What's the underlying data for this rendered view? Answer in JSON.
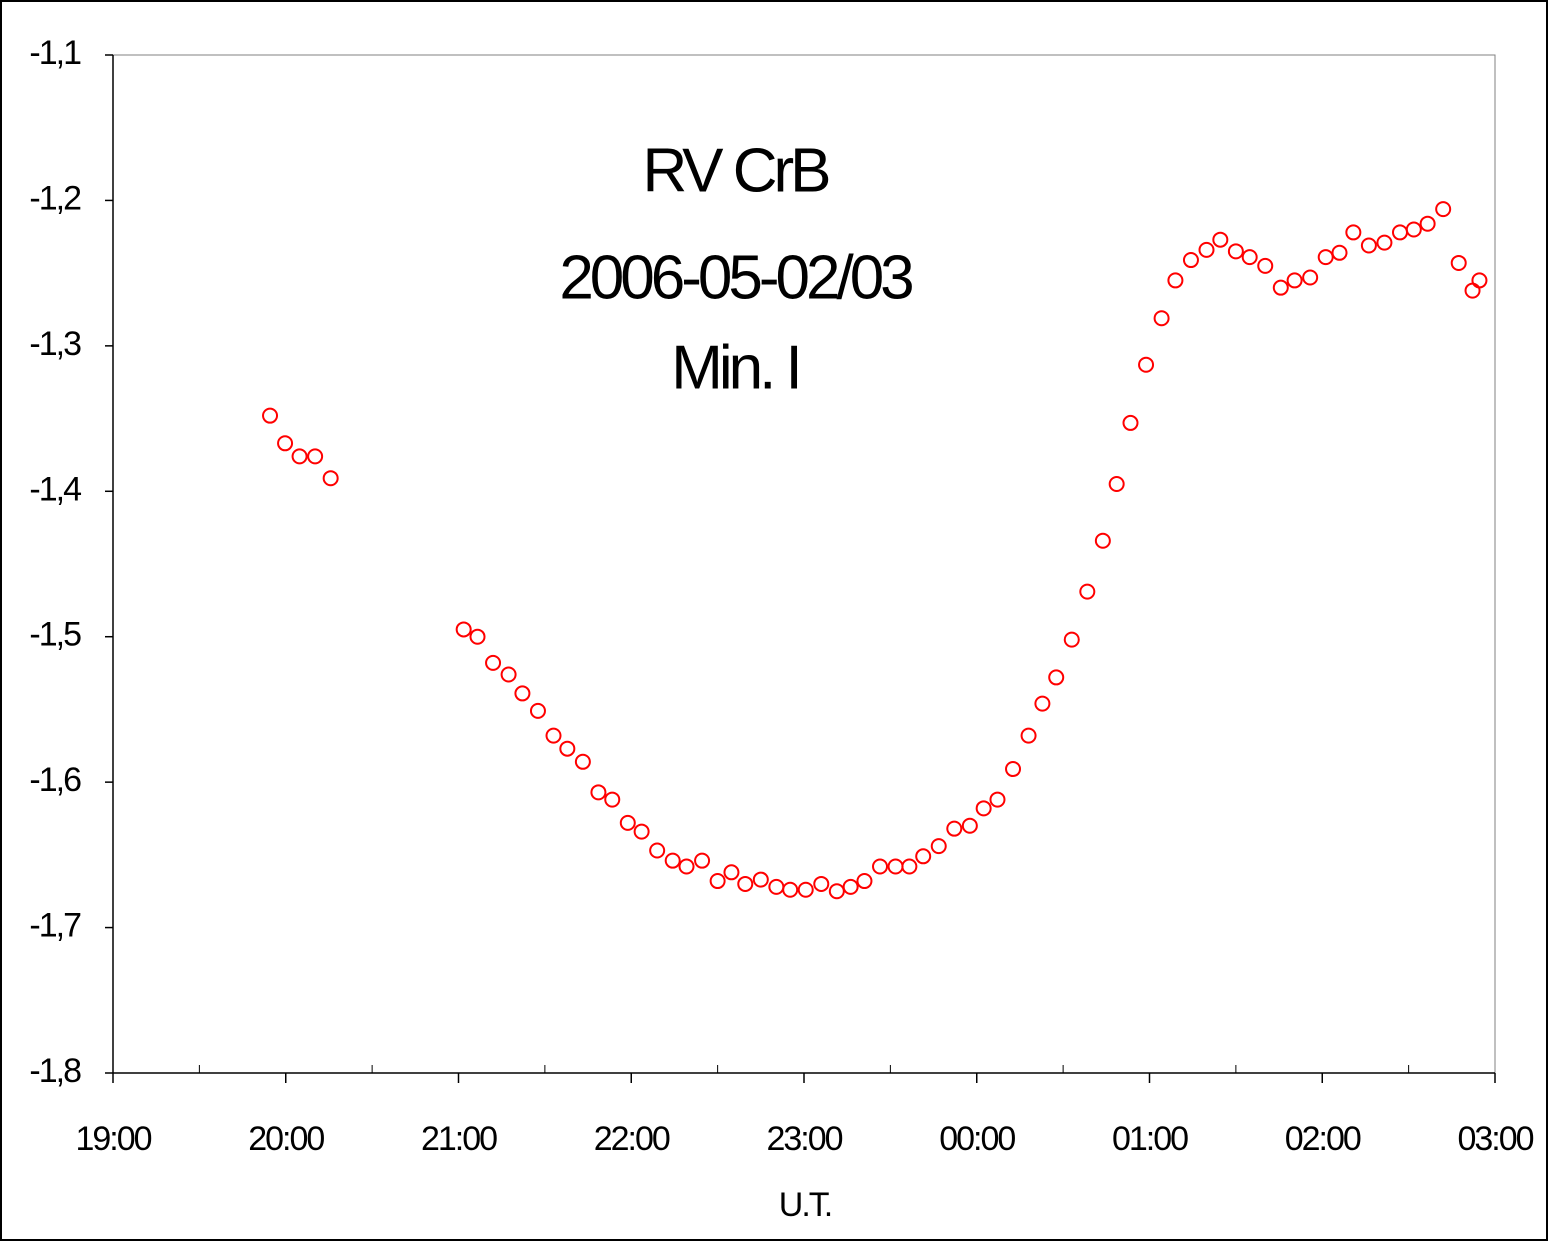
{
  "chart_data": {
    "type": "scatter",
    "title": [
      "RV CrB",
      "2006-05-02/03",
      "Min. I"
    ],
    "xlabel": "U.T.",
    "color": "#ff0000",
    "xlim": [
      19,
      27
    ],
    "xticks": [
      {
        "value": 19,
        "label": "19:00"
      },
      {
        "value": 20,
        "label": "20:00"
      },
      {
        "value": 21,
        "label": "21:00"
      },
      {
        "value": 22,
        "label": "22:00"
      },
      {
        "value": 23,
        "label": "23:00"
      },
      {
        "value": 24,
        "label": "00:00"
      },
      {
        "value": 25,
        "label": "01:00"
      },
      {
        "value": 26,
        "label": "02:00"
      },
      {
        "value": 27,
        "label": "03:00"
      }
    ],
    "ylim": [
      -1.8,
      -1.1
    ],
    "yticks": [
      {
        "value": -1.8,
        "label": "-1,8"
      },
      {
        "value": -1.7,
        "label": "-1,7"
      },
      {
        "value": -1.6,
        "label": "-1,6"
      },
      {
        "value": -1.5,
        "label": "-1,5"
      },
      {
        "value": -1.4,
        "label": "-1,4"
      },
      {
        "value": -1.3,
        "label": "-1,3"
      },
      {
        "value": -1.2,
        "label": "-1,2"
      },
      {
        "value": -1.1,
        "label": "-1,1"
      }
    ],
    "x": [
      19.909,
      19.996,
      20.08,
      20.17,
      20.26,
      21.03,
      21.11,
      21.2,
      21.29,
      21.37,
      21.46,
      21.55,
      21.63,
      21.72,
      21.81,
      21.89,
      21.98,
      22.06,
      22.15,
      22.24,
      22.32,
      22.41,
      22.5,
      22.58,
      22.66,
      22.75,
      22.84,
      22.92,
      23.01,
      23.1,
      23.19,
      23.27,
      23.35,
      23.44,
      23.53,
      23.61,
      23.69,
      23.78,
      23.87,
      23.96,
      24.04,
      24.12,
      24.21,
      24.3,
      24.38,
      24.46,
      24.55,
      24.64,
      24.73,
      24.81,
      24.89,
      24.98,
      25.07,
      25.15,
      25.24,
      25.33,
      25.41,
      25.5,
      25.58,
      25.67,
      25.76,
      25.84,
      25.93,
      26.02,
      26.1,
      26.18,
      26.27,
      26.36,
      26.45,
      26.53,
      26.61,
      26.7,
      26.79,
      26.87,
      26.91
    ],
    "values": [
      -1.348,
      -1.367,
      -1.376,
      -1.376,
      -1.391,
      -1.495,
      -1.5,
      -1.518,
      -1.526,
      -1.539,
      -1.551,
      -1.568,
      -1.577,
      -1.586,
      -1.607,
      -1.612,
      -1.628,
      -1.634,
      -1.647,
      -1.654,
      -1.658,
      -1.654,
      -1.668,
      -1.662,
      -1.67,
      -1.667,
      -1.672,
      -1.674,
      -1.674,
      -1.67,
      -1.675,
      -1.672,
      -1.668,
      -1.658,
      -1.658,
      -1.658,
      -1.651,
      -1.644,
      -1.632,
      -1.63,
      -1.618,
      -1.612,
      -1.591,
      -1.568,
      -1.546,
      -1.528,
      -1.502,
      -1.469,
      -1.434,
      -1.395,
      -1.353,
      -1.313,
      -1.281,
      -1.255,
      -1.241,
      -1.234,
      -1.227,
      -1.235,
      -1.239,
      -1.245,
      -1.26,
      -1.255,
      -1.253,
      -1.239,
      -1.236,
      -1.222,
      -1.231,
      -1.229,
      -1.222,
      -1.22,
      -1.216,
      -1.206,
      -1.243,
      -1.262,
      -1.255
    ]
  }
}
